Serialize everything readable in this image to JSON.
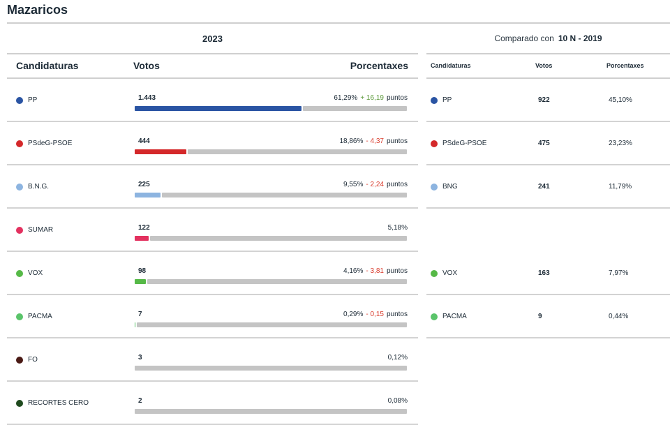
{
  "title": "Mazaricos",
  "year": "2023",
  "comparison": {
    "label": "Comparado con",
    "reference": "10 N - 2019"
  },
  "headers": {
    "candidaturas": "Candidaturas",
    "votos": "Votos",
    "porcentaxes": "Porcentaxes"
  },
  "rows": [
    {
      "party": "PP",
      "color": "#2a54a3",
      "votes": "1.443",
      "pct": "61,29%",
      "change": "+ 16,19",
      "change_dir": "up",
      "points_label": "puntos"
    },
    {
      "party": "PSdeG-PSOE",
      "color": "#d4282a",
      "votes": "444",
      "pct": "18,86%",
      "change": "- 4,37",
      "change_dir": "down",
      "points_label": "puntos"
    },
    {
      "party": "B.N.G.",
      "color": "#8db4e0",
      "votes": "225",
      "pct": "9,55%",
      "change": "- 2,24",
      "change_dir": "down",
      "points_label": "puntos"
    },
    {
      "party": "SUMAR",
      "color": "#e3315f",
      "votes": "122",
      "pct": "5,18%",
      "change": "",
      "change_dir": "",
      "points_label": ""
    },
    {
      "party": "VOX",
      "color": "#56b947",
      "votes": "98",
      "pct": "4,16%",
      "change": "- 3,81",
      "change_dir": "down",
      "points_label": "puntos"
    },
    {
      "party": "PACMA",
      "color": "#5ac46a",
      "votes": "7",
      "pct": "0,29%",
      "change": "- 0,15",
      "change_dir": "down",
      "points_label": "puntos"
    },
    {
      "party": "FO",
      "color": "#4a1a15",
      "votes": "3",
      "pct": "0,12%",
      "change": "",
      "change_dir": "",
      "points_label": ""
    },
    {
      "party": "RECORTES CERO",
      "color": "#1f4a1e",
      "votes": "2",
      "pct": "0,08%",
      "change": "",
      "change_dir": "",
      "points_label": ""
    }
  ],
  "comparison_rows": [
    {
      "party": "PP",
      "color": "#2a54a3",
      "votes": "922",
      "pct": "45,10%"
    },
    {
      "party": "PSdeG-PSOE",
      "color": "#d4282a",
      "votes": "475",
      "pct": "23,23%"
    },
    {
      "party": "BNG",
      "color": "#8db4e0",
      "votes": "241",
      "pct": "11,79%"
    },
    null,
    {
      "party": "VOX",
      "color": "#56b947",
      "votes": "163",
      "pct": "7,97%"
    },
    {
      "party": "PACMA",
      "color": "#5ac46a",
      "votes": "9",
      "pct": "0,44%"
    },
    null,
    null
  ],
  "chart_data": {
    "type": "bar",
    "orientation": "horizontal",
    "categories": [
      "PP",
      "PSdeG-PSOE",
      "B.N.G.",
      "SUMAR",
      "VOX",
      "PACMA",
      "FO",
      "RECORTES CERO"
    ],
    "values": [
      61.29,
      18.86,
      9.55,
      5.18,
      4.16,
      0.29,
      0.12,
      0.08
    ],
    "votes": [
      1443,
      444,
      225,
      122,
      98,
      7,
      3,
      2
    ],
    "xlim": [
      0,
      100
    ],
    "grid": false
  }
}
